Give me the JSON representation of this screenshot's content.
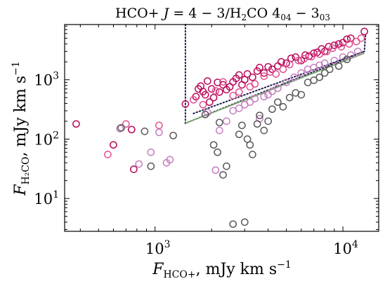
{
  "chart_data": {
    "type": "scatter",
    "title": "HCO+ J=4−3/H₂CO 4₀₄−3₀₃",
    "title_parts": {
      "a": "HCO+ ",
      "b": "J",
      "c": " = 4 − 3/H",
      "d": "2",
      "e": "CO 4",
      "f": "04",
      "g": " − 3",
      "h": "03"
    },
    "xlabel_parts": {
      "F": "F",
      "sub": "HCO+",
      "rest": ", mJy km s",
      "exp": "−1"
    },
    "ylabel_parts": {
      "F": "F",
      "sub": "H₂CO",
      "rest": ", mJy km s",
      "exp": "−1"
    },
    "xscale": "log",
    "yscale": "log",
    "xlim": [
      330,
      15500
    ],
    "ylim": [
      2.8,
      8500
    ],
    "xticks": [
      {
        "value": 1000,
        "base": "10",
        "exp": "3"
      },
      {
        "value": 10000,
        "base": "10",
        "exp": "4"
      }
    ],
    "yticks": [
      {
        "value": 10,
        "base": "10",
        "exp": "1"
      },
      {
        "value": 100,
        "base": "10",
        "exp": "2"
      },
      {
        "value": 1000,
        "base": "10",
        "exp": "3"
      }
    ],
    "grid": false,
    "legend": "none",
    "series": [
      {
        "color": "#b80a5a",
        "fill": "none",
        "points": [
          [
            380,
            180
          ],
          [
            600,
            80
          ],
          [
            750,
            145
          ],
          [
            770,
            31
          ],
          [
            1450,
            390
          ],
          [
            1650,
            520
          ],
          [
            1700,
            700
          ],
          [
            1750,
            780
          ],
          [
            1800,
            630
          ],
          [
            1850,
            560
          ],
          [
            1900,
            950
          ],
          [
            1950,
            420
          ],
          [
            2000,
            700
          ],
          [
            2050,
            500
          ],
          [
            2150,
            900
          ],
          [
            2200,
            620
          ],
          [
            2300,
            820
          ],
          [
            2400,
            680
          ],
          [
            2500,
            760
          ],
          [
            2600,
            920
          ],
          [
            2700,
            1050
          ],
          [
            2800,
            1200
          ],
          [
            2900,
            820
          ],
          [
            3000,
            1000
          ],
          [
            3100,
            1250
          ],
          [
            3300,
            1100
          ],
          [
            3500,
            1400
          ],
          [
            3600,
            1600
          ],
          [
            3800,
            1300
          ],
          [
            4000,
            1650
          ],
          [
            4200,
            1500
          ],
          [
            4500,
            1700
          ],
          [
            4700,
            2000
          ],
          [
            5000,
            1900
          ],
          [
            5300,
            2300
          ],
          [
            5600,
            2400
          ],
          [
            6000,
            2100
          ],
          [
            6300,
            2600
          ],
          [
            6600,
            2500
          ],
          [
            7000,
            2800
          ],
          [
            7300,
            2900
          ],
          [
            7700,
            3300
          ],
          [
            8000,
            3000
          ],
          [
            8400,
            3600
          ],
          [
            9000,
            3800
          ],
          [
            9500,
            4000
          ],
          [
            10000,
            4200
          ],
          [
            10500,
            4800
          ],
          [
            11000,
            5000
          ],
          [
            13000,
            6500
          ]
        ]
      },
      {
        "color": "#e0528f",
        "fill": "none",
        "points": [
          [
            560,
            55
          ],
          [
            700,
            180
          ],
          [
            1050,
            170
          ],
          [
            1600,
            460
          ],
          [
            1800,
            380
          ],
          [
            2100,
            650
          ],
          [
            2300,
            920
          ],
          [
            2600,
            540
          ],
          [
            2800,
            620
          ],
          [
            3200,
            760
          ],
          [
            3400,
            850
          ],
          [
            3800,
            1150
          ],
          [
            4100,
            1350
          ],
          [
            4400,
            1250
          ],
          [
            4800,
            1500
          ],
          [
            5200,
            1800
          ],
          [
            5800,
            2100
          ],
          [
            6200,
            2250
          ],
          [
            6800,
            2450
          ],
          [
            7500,
            2700
          ],
          [
            8200,
            3000
          ],
          [
            8800,
            3400
          ],
          [
            9800,
            3600
          ],
          [
            10800,
            4000
          ],
          [
            11800,
            4400
          ],
          [
            12500,
            5000
          ]
        ]
      },
      {
        "color": "#c77fc0",
        "fill": "none",
        "points": [
          [
            650,
            150
          ],
          [
            820,
            38
          ],
          [
            950,
            60
          ],
          [
            1050,
            130
          ],
          [
            1150,
            40
          ],
          [
            1200,
            45
          ],
          [
            1900,
            280
          ],
          [
            2100,
            30
          ],
          [
            2200,
            140
          ],
          [
            2400,
            200
          ],
          [
            2600,
            300
          ],
          [
            2800,
            330
          ],
          [
            3000,
            380
          ],
          [
            3200,
            420
          ],
          [
            3400,
            480
          ],
          [
            3600,
            220
          ],
          [
            3800,
            520
          ],
          [
            4000,
            560
          ],
          [
            4200,
            640
          ],
          [
            4500,
            720
          ],
          [
            5000,
            900
          ],
          [
            5500,
            1100
          ],
          [
            6000,
            1300
          ],
          [
            6500,
            1500
          ],
          [
            7000,
            1600
          ],
          [
            7500,
            1750
          ],
          [
            8000,
            1900
          ],
          [
            9000,
            2100
          ],
          [
            10000,
            2400
          ],
          [
            11000,
            2600
          ],
          [
            12000,
            3000
          ]
        ]
      },
      {
        "color": "#595959",
        "fill": "none",
        "points": [
          [
            660,
            155
          ],
          [
            880,
            135
          ],
          [
            950,
            35
          ],
          [
            1250,
            115
          ],
          [
            1850,
            260
          ],
          [
            2050,
            80
          ],
          [
            2150,
            60
          ],
          [
            2200,
            190
          ],
          [
            2300,
            25
          ],
          [
            2400,
            35
          ],
          [
            2600,
            3.7
          ],
          [
            2800,
            120
          ],
          [
            2900,
            170
          ],
          [
            3000,
            4
          ],
          [
            3100,
            100
          ],
          [
            3200,
            80
          ],
          [
            3300,
            55
          ],
          [
            3500,
            180
          ],
          [
            3600,
            250
          ],
          [
            3800,
            140
          ],
          [
            4000,
            200
          ],
          [
            4200,
            320
          ],
          [
            4500,
            420
          ],
          [
            4800,
            350
          ],
          [
            5200,
            500
          ],
          [
            5600,
            600
          ],
          [
            6000,
            560
          ],
          [
            6500,
            900
          ],
          [
            7000,
            980
          ],
          [
            7500,
            1100
          ],
          [
            8000,
            1300
          ],
          [
            8500,
            1500
          ],
          [
            9500,
            1700
          ],
          [
            10500,
            2200
          ]
        ]
      }
    ],
    "lines": [
      {
        "style": "dotted",
        "color": "#1c1c4e",
        "points": [
          [
            1450,
            8500
          ],
          [
            1450,
            185
          ],
          [
            13000,
            3000
          ],
          [
            13200,
            5800
          ]
        ]
      },
      {
        "style": "dotted",
        "color": "#1c1c4e",
        "points": [
          [
            1600,
            270
          ],
          [
            13000,
            3000
          ]
        ]
      },
      {
        "style": "solid",
        "color": "#7aa56e",
        "points": [
          [
            1450,
            185
          ],
          [
            13000,
            2800
          ]
        ]
      }
    ]
  }
}
